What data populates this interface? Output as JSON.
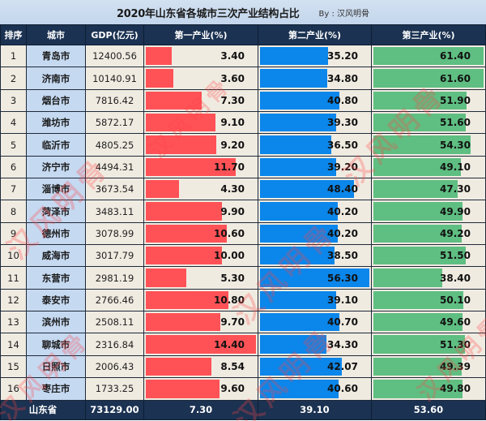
{
  "title": "2020年山东省各城市三次产业结构占比",
  "byline": "By : 汉风明骨",
  "watermark": "汉风明骨",
  "headers": {
    "rank": "排序",
    "city": "城市",
    "gdp": "GDP(亿元)",
    "p1": "第一产业(%)",
    "p2": "第二产业(%)",
    "p3": "第三产业(%)"
  },
  "colors": {
    "primary_bar": "#ff5257",
    "secondary_bar": "#0b86ea",
    "tertiary_bar": "#5fbe82",
    "header_bg": "#1b3252",
    "city_bg": "#c5d9f1",
    "cell_bg": "#f0ebe1"
  },
  "rows": [
    {
      "rank": "1",
      "city": "青岛市",
      "gdp": "12400.56",
      "p1": "3.40",
      "p2": "35.20",
      "p3": "61.40"
    },
    {
      "rank": "2",
      "city": "济南市",
      "gdp": "10140.91",
      "p1": "3.60",
      "p2": "34.80",
      "p3": "61.60"
    },
    {
      "rank": "3",
      "city": "烟台市",
      "gdp": "7816.42",
      "p1": "7.30",
      "p2": "40.80",
      "p3": "51.90"
    },
    {
      "rank": "4",
      "city": "潍坊市",
      "gdp": "5872.17",
      "p1": "9.10",
      "p2": "39.30",
      "p3": "51.60"
    },
    {
      "rank": "5",
      "city": "临沂市",
      "gdp": "4805.25",
      "p1": "9.20",
      "p2": "36.50",
      "p3": "54.30"
    },
    {
      "rank": "6",
      "city": "济宁市",
      "gdp": "4494.31",
      "p1": "11.70",
      "p2": "39.20",
      "p3": "49.10"
    },
    {
      "rank": "7",
      "city": "淄博市",
      "gdp": "3673.54",
      "p1": "4.30",
      "p2": "48.40",
      "p3": "47.30"
    },
    {
      "rank": "8",
      "city": "菏泽市",
      "gdp": "3483.11",
      "p1": "9.90",
      "p2": "40.20",
      "p3": "49.90"
    },
    {
      "rank": "9",
      "city": "德州市",
      "gdp": "3078.99",
      "p1": "10.60",
      "p2": "40.20",
      "p3": "49.20"
    },
    {
      "rank": "10",
      "city": "威海市",
      "gdp": "3017.79",
      "p1": "10.00",
      "p2": "38.50",
      "p3": "51.50"
    },
    {
      "rank": "11",
      "city": "东营市",
      "gdp": "2981.19",
      "p1": "5.30",
      "p2": "56.30",
      "p3": "38.40"
    },
    {
      "rank": "12",
      "city": "泰安市",
      "gdp": "2766.46",
      "p1": "10.80",
      "p2": "39.10",
      "p3": "50.10"
    },
    {
      "rank": "13",
      "city": "滨州市",
      "gdp": "2508.11",
      "p1": "9.70",
      "p2": "40.70",
      "p3": "49.60"
    },
    {
      "rank": "14",
      "city": "聊城市",
      "gdp": "2316.84",
      "p1": "14.40",
      "p2": "34.30",
      "p3": "51.30"
    },
    {
      "rank": "15",
      "city": "日照市",
      "gdp": "2006.43",
      "p1": "8.54",
      "p2": "42.07",
      "p3": "49.39"
    },
    {
      "rank": "16",
      "city": "枣庄市",
      "gdp": "1733.25",
      "p1": "9.60",
      "p2": "40.60",
      "p3": "49.80"
    }
  ],
  "total": {
    "label": "山东省",
    "gdp": "73129.00",
    "p1": "7.30",
    "p2": "39.10",
    "p3": "53.60"
  },
  "chart_data": {
    "type": "table",
    "title": "2020年山东省各城市三次产业结构占比",
    "subtitle": "By : 汉风明骨",
    "columns": [
      "排序",
      "城市",
      "GDP(亿元)",
      "第一产业(%)",
      "第二产业(%)",
      "第三产业(%)"
    ],
    "categories": [
      "青岛市",
      "济南市",
      "烟台市",
      "潍坊市",
      "临沂市",
      "济宁市",
      "淄博市",
      "菏泽市",
      "德州市",
      "威海市",
      "东营市",
      "泰安市",
      "滨州市",
      "聊城市",
      "日照市",
      "枣庄市"
    ],
    "series": [
      {
        "name": "GDP(亿元)",
        "values": [
          12400.56,
          10140.91,
          7816.42,
          5872.17,
          4805.25,
          4494.31,
          3673.54,
          3483.11,
          3078.99,
          3017.79,
          2981.19,
          2766.46,
          2508.11,
          2316.84,
          2006.43,
          1733.25
        ]
      },
      {
        "name": "第一产业(%)",
        "values": [
          3.4,
          3.6,
          7.3,
          9.1,
          9.2,
          11.7,
          4.3,
          9.9,
          10.6,
          10.0,
          5.3,
          10.8,
          9.7,
          14.4,
          8.54,
          9.6
        ],
        "color": "#ff5257"
      },
      {
        "name": "第二产业(%)",
        "values": [
          35.2,
          34.8,
          40.8,
          39.3,
          36.5,
          39.2,
          48.4,
          40.2,
          40.2,
          38.5,
          56.3,
          39.1,
          40.7,
          34.3,
          42.07,
          40.6
        ],
        "color": "#0b86ea"
      },
      {
        "name": "第三产业(%)",
        "values": [
          61.4,
          61.6,
          51.9,
          51.6,
          54.3,
          49.1,
          47.3,
          49.9,
          49.2,
          51.5,
          38.4,
          50.1,
          49.6,
          51.3,
          49.39,
          49.8
        ],
        "color": "#5fbe82"
      }
    ],
    "total": {
      "label": "山东省",
      "GDP(亿元)": 73129.0,
      "第一产业(%)": 7.3,
      "第二产业(%)": 39.1,
      "第三产业(%)": 53.6
    }
  }
}
